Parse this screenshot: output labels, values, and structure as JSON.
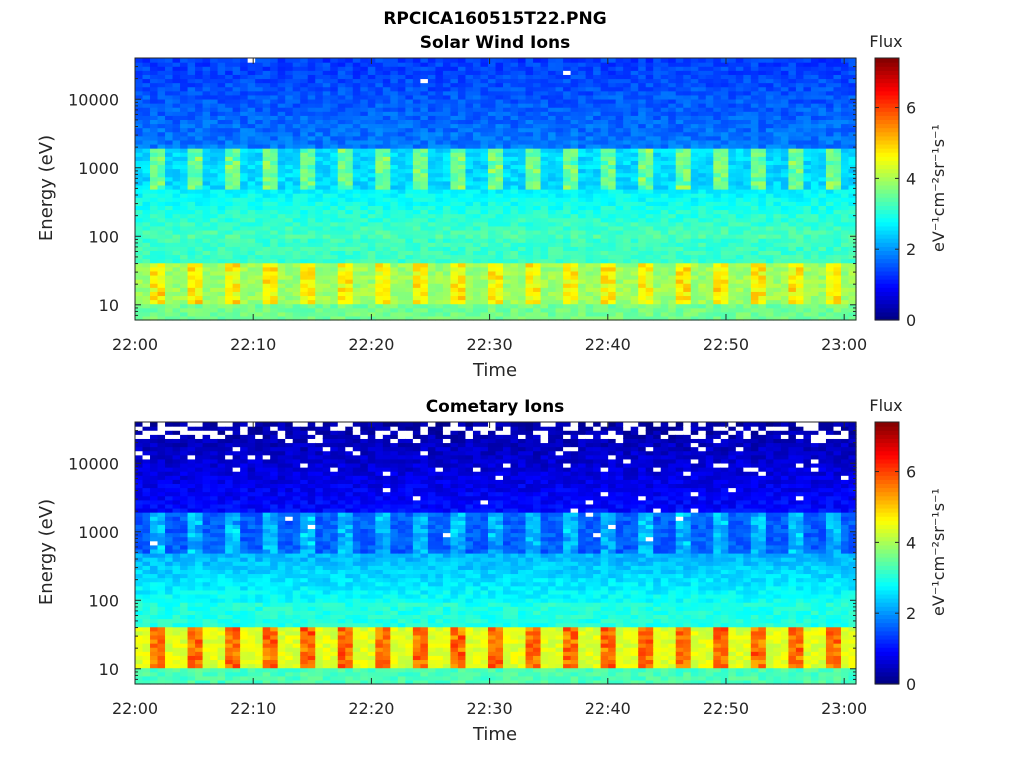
{
  "figure": {
    "title": "RPCICA160515T22.PNG"
  },
  "chart_data": [
    {
      "type": "heatmap",
      "title": "Solar Wind Ions",
      "xlabel": "Time",
      "ylabel": "Energy (eV)",
      "x_range": [
        "22:00",
        "23:01"
      ],
      "x_ticks": [
        "22:00",
        "22:10",
        "22:20",
        "22:30",
        "22:40",
        "22:50",
        "23:00"
      ],
      "y_scale": "log",
      "y_range": [
        6,
        40000
      ],
      "y_ticks": [
        "10",
        "100",
        "1000",
        "10000"
      ],
      "colorbar": {
        "title": "Flux",
        "label": "eV⁻¹cm⁻²sr⁻¹s⁻¹",
        "range": [
          0,
          7.4
        ],
        "ticks": [
          "0",
          "2",
          "4",
          "6"
        ],
        "colormap": "jet"
      },
      "bands": [
        {
          "energy_eV": [
            6,
            10
          ],
          "flux": 3.6
        },
        {
          "energy_eV": [
            10,
            40
          ],
          "flux": 3.9,
          "peak_flux": 5.0
        },
        {
          "energy_eV": [
            40,
            100
          ],
          "flux": 3.2
        },
        {
          "energy_eV": [
            100,
            500
          ],
          "flux": 2.7
        },
        {
          "energy_eV": [
            500,
            2000
          ],
          "flux": 2.5,
          "peak_flux": 3.9
        },
        {
          "energy_eV": [
            2000,
            40000
          ],
          "flux": 1.8
        }
      ],
      "grid": false
    },
    {
      "type": "heatmap",
      "title": "Cometary Ions",
      "xlabel": "Time",
      "ylabel": "Energy (eV)",
      "x_range": [
        "22:00",
        "23:01"
      ],
      "x_ticks": [
        "22:00",
        "22:10",
        "22:20",
        "22:30",
        "22:40",
        "22:50",
        "23:00"
      ],
      "y_scale": "log",
      "y_range": [
        6,
        40000
      ],
      "y_ticks": [
        "10",
        "100",
        "1000",
        "10000"
      ],
      "colorbar": {
        "title": "Flux",
        "label": "eV⁻¹cm⁻²sr⁻¹s⁻¹",
        "range": [
          0,
          7.4
        ],
        "ticks": [
          "0",
          "2",
          "4",
          "6"
        ],
        "colormap": "jet"
      },
      "bands": [
        {
          "energy_eV": [
            6,
            10
          ],
          "flux": 3.3
        },
        {
          "energy_eV": [
            10,
            40
          ],
          "flux": 4.4,
          "peak_flux": 6.0
        },
        {
          "energy_eV": [
            40,
            100
          ],
          "flux": 3.0
        },
        {
          "energy_eV": [
            100,
            500
          ],
          "flux": 2.2
        },
        {
          "energy_eV": [
            500,
            2000
          ],
          "flux": 1.6,
          "peak_flux": 2.6
        },
        {
          "energy_eV": [
            2000,
            40000
          ],
          "flux": 1.0
        }
      ],
      "grid": false
    }
  ]
}
